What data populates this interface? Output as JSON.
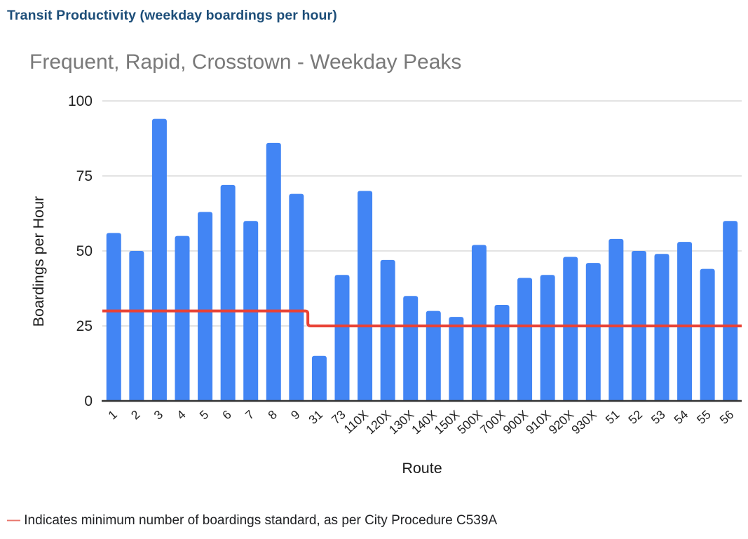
{
  "page": {
    "title": "Transit Productivity (weekday boardings per hour)",
    "footnote": {
      "dash": "—",
      "text": "Indicates minimum number of boardings standard, as per City Procedure C539A"
    }
  },
  "chart_data": {
    "type": "bar",
    "title": "Frequent, Rapid, Crosstown - Weekday Peaks",
    "xlabel": "Route",
    "ylabel": "Boardings per Hour",
    "ylim": [
      0,
      100
    ],
    "yticks": [
      0,
      25,
      50,
      75,
      100
    ],
    "grid": true,
    "legend_position": "none",
    "categories": [
      "1",
      "2",
      "3",
      "4",
      "5",
      "6",
      "7",
      "8",
      "9",
      "31",
      "73",
      "110X",
      "120X",
      "130X",
      "140X",
      "150X",
      "500X",
      "700X",
      "900X",
      "910X",
      "920X",
      "930X",
      "51",
      "52",
      "53",
      "54",
      "55",
      "56"
    ],
    "series": [
      {
        "name": "Weekday boardings per hour",
        "type": "bar",
        "color": "#4285f4",
        "values": [
          56,
          50,
          94,
          55,
          63,
          72,
          60,
          86,
          69,
          15,
          42,
          70,
          47,
          35,
          30,
          28,
          52,
          32,
          41,
          42,
          48,
          46,
          54,
          50,
          49,
          53,
          44,
          60
        ]
      },
      {
        "name": "Minimum boardings standard (City Procedure C539A)",
        "type": "step-line",
        "color": "#e94235",
        "values": [
          30,
          30,
          30,
          30,
          30,
          30,
          30,
          30,
          30,
          25,
          25,
          25,
          25,
          25,
          25,
          25,
          25,
          25,
          25,
          25,
          25,
          25,
          25,
          25,
          25,
          25,
          25,
          25
        ]
      }
    ],
    "colors": {
      "bar": "#4285f4",
      "standard_line": "#e94235",
      "gridline": "#dadada",
      "axis_line": "#333333",
      "title_gray": "#797979",
      "header_navy": "#1d4e79",
      "footnote_dash": "#e8756b"
    }
  }
}
